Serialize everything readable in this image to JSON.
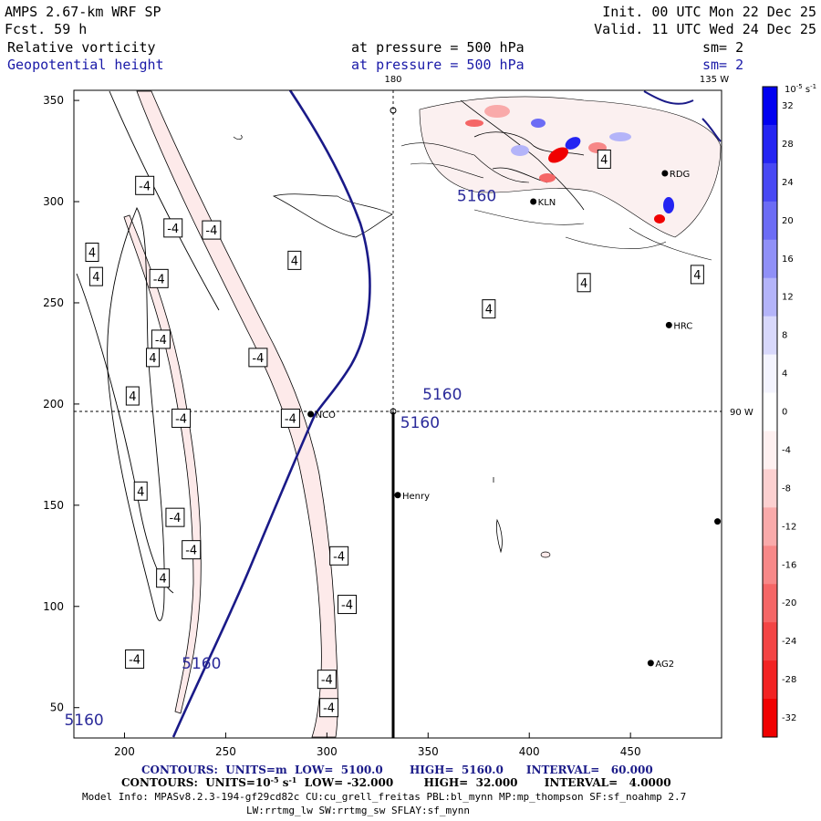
{
  "header": {
    "model": "AMPS 2.67-km WRF SP",
    "forecast": "Fcst.   59 h",
    "init": "Init. 00 UTC Mon 22 Dec 25",
    "valid": "Valid. 11 UTC Wed 24 Dec 25",
    "field1": "Relative vorticity",
    "field2": "Geopotential height",
    "pressure1": "at pressure =  500 hPa",
    "pressure2": "at pressure =  500 hPa",
    "sm1": "sm= 2",
    "sm2": "sm= 2"
  },
  "geo_labels": {
    "lon180": "180",
    "lon135": "135 W",
    "lon90": "90 W"
  },
  "footer": {
    "line1": "CONTOURS:  UNITS=m  LOW=  5100.0       HIGH=  5160.0      INTERVAL=   60.000",
    "line2_a": "CONTOURS:  UNITS=10",
    "line2_sup": "-5",
    "line2_b": " s",
    "line2_sup2": "-1",
    "line2_c": "  LOW= -32.000        HIGH=  32.000       INTERVAL=   4.0000",
    "info1": "Model Info: MPASv8.2.3-194-gf29cd82c CU:cu_grell_freitas PBL:bl_mynn MP:mp_thompson SF:sf_noahmp 2.7",
    "info2": "LW:rrtmg_lw SW:rrtmg_sw SFLAY:sf_mynn"
  },
  "stations": [
    {
      "name": "NCO",
      "x": 292,
      "y": 195
    },
    {
      "name": "Henry",
      "x": 335,
      "y": 155
    },
    {
      "name": "KLN",
      "x": 402,
      "y": 300
    },
    {
      "name": "RDG",
      "x": 467,
      "y": 314
    },
    {
      "name": "HRC",
      "x": 469,
      "y": 239
    },
    {
      "name": "AG2",
      "x": 460,
      "y": 72
    },
    {
      "name": "",
      "x": 493,
      "y": 142
    }
  ],
  "colorbar": {
    "unit_label": "10",
    "unit_sup": "-5",
    "unit_tail": " s",
    "unit_sup2": "-1",
    "levels": [
      32,
      28,
      24,
      20,
      16,
      12,
      8,
      4,
      0,
      -4,
      -8,
      -12,
      -16,
      -20,
      -24,
      -28,
      -32
    ],
    "colors": [
      "#0000f0",
      "#2424f2",
      "#4848f4",
      "#6c6cf5",
      "#9090f7",
      "#b4b4f9",
      "#d8d8fb",
      "#f4f4fe",
      "#ffffff",
      "#fef0f0",
      "#fcd0d0",
      "#f9aaaa",
      "#f78888",
      "#f56666",
      "#f34444",
      "#f22222",
      "#f00000"
    ]
  },
  "chart_data": {
    "type": "contour-map",
    "xlim": [
      175,
      495
    ],
    "ylim": [
      35,
      355
    ],
    "xticks": [
      200,
      250,
      300,
      350,
      400,
      450
    ],
    "yticks": [
      50,
      100,
      150,
      200,
      250,
      300,
      350
    ],
    "height_label": "5160",
    "vort_labels_neg": [
      {
        "text": "-4",
        "x": 210,
        "y": 308
      },
      {
        "text": "-4",
        "x": 224,
        "y": 287
      },
      {
        "text": "-4",
        "x": 243,
        "y": 286
      },
      {
        "text": "-4",
        "x": 217,
        "y": 262
      },
      {
        "text": "-4",
        "x": 218,
        "y": 232
      },
      {
        "text": "-4",
        "x": 266,
        "y": 223
      },
      {
        "text": "-4",
        "x": 228,
        "y": 193
      },
      {
        "text": "-4",
        "x": 282,
        "y": 193
      },
      {
        "text": "-4",
        "x": 225,
        "y": 144
      },
      {
        "text": "-4",
        "x": 233,
        "y": 128
      },
      {
        "text": "-4",
        "x": 306,
        "y": 125
      },
      {
        "text": "-4",
        "x": 310,
        "y": 101
      },
      {
        "text": "-4",
        "x": 205,
        "y": 74
      },
      {
        "text": "-4",
        "x": 300,
        "y": 64
      },
      {
        "text": "-4",
        "x": 301,
        "y": 50
      }
    ],
    "vort_labels_pos": [
      {
        "text": "4",
        "x": 380,
        "y": 247
      },
      {
        "text": "4",
        "x": 186,
        "y": 263
      },
      {
        "text": "4",
        "x": 184,
        "y": 275
      },
      {
        "text": "4",
        "x": 214,
        "y": 223
      },
      {
        "text": "4",
        "x": 204,
        "y": 204
      },
      {
        "text": "4",
        "x": 284,
        "y": 271
      },
      {
        "text": "4",
        "x": 208,
        "y": 157
      },
      {
        "text": "4",
        "x": 219,
        "y": 114
      },
      {
        "text": "4",
        "x": 437,
        "y": 321
      },
      {
        "text": "4",
        "x": 427,
        "y": 260
      },
      {
        "text": "4",
        "x": 483,
        "y": 264
      }
    ],
    "height_labels": [
      {
        "text": "5160",
        "x": 374,
        "y": 303
      },
      {
        "text": "5160",
        "x": 357,
        "y": 205
      },
      {
        "text": "5160",
        "x": 346,
        "y": 191
      },
      {
        "text": "5160",
        "x": 238,
        "y": 72
      },
      {
        "text": "5160",
        "x": 180,
        "y": 44
      }
    ]
  }
}
